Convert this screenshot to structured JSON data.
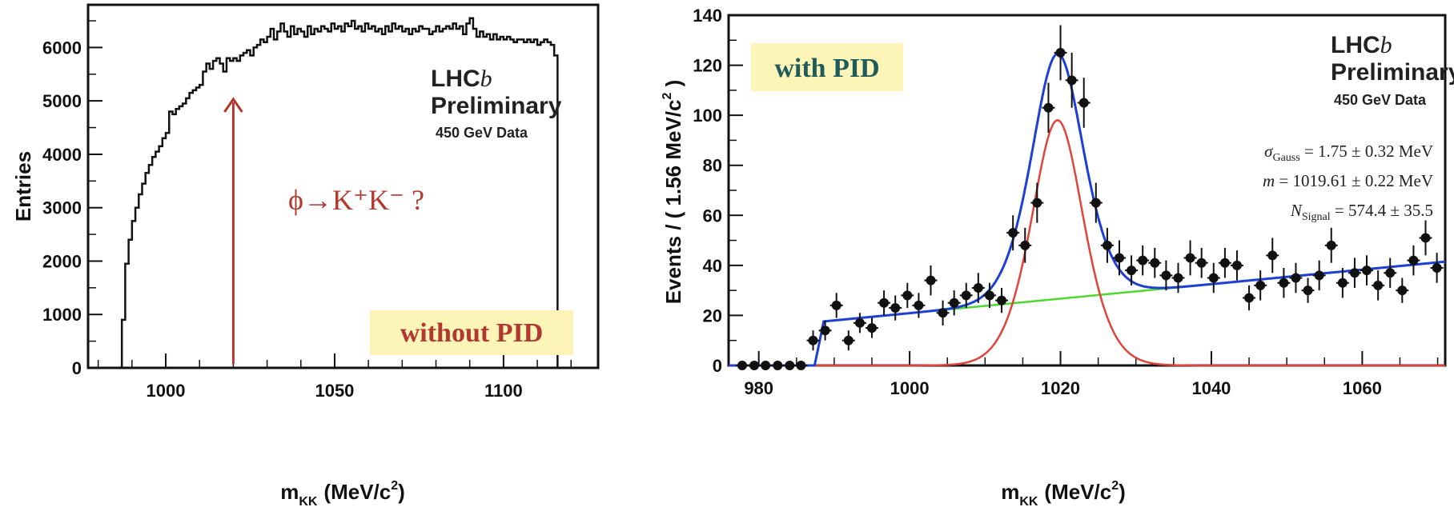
{
  "chart_data": [
    {
      "type": "histogram",
      "xlabel_main": "m",
      "xlabel_sub": "KK",
      "xlabel_unit": "(MeV/c",
      "xlabel_pow": "2",
      "xlabel_close": ")",
      "ylabel": "Entries",
      "xlim": [
        977,
        1128
      ],
      "ylim": [
        0,
        6800
      ],
      "x_ticks": [
        1000,
        1050,
        1100
      ],
      "y_ticks": [
        0,
        1000,
        2000,
        3000,
        4000,
        5000,
        6000
      ],
      "lhcb_line1": "LHC",
      "lhcb_italic": "b",
      "lhcb_line2": "Preliminary",
      "lhcb_line3": "450 GeV Data",
      "annotation": "ϕ→K⁺K⁻ ?",
      "arrow_x": 1020,
      "badge": "without PID",
      "badge_color": "#fdf5b8",
      "annotation_color": "#b2382f",
      "bin_edges_start": 987,
      "bin_width": 1,
      "counts": [
        900,
        1950,
        2400,
        2750,
        3000,
        3250,
        3450,
        3650,
        3800,
        3950,
        4050,
        4150,
        4300,
        4400,
        4800,
        4750,
        4850,
        4900,
        4950,
        5050,
        5150,
        5200,
        5250,
        5300,
        5550,
        5700,
        5600,
        5750,
        5800,
        5700,
        5550,
        5800,
        5750,
        5800,
        5750,
        5850,
        5900,
        5950,
        5850,
        6000,
        6050,
        6150,
        6100,
        6200,
        6350,
        6150,
        6300,
        6450,
        6300,
        6200,
        6400,
        6250,
        6350,
        6300,
        6200,
        6400,
        6250,
        6350,
        6300,
        6400,
        6350,
        6300,
        6450,
        6350,
        6400,
        6300,
        6450,
        6400,
        6500,
        6350,
        6400,
        6300,
        6450,
        6350,
        6400,
        6300,
        6350,
        6250,
        6400,
        6300,
        6450,
        6350,
        6400,
        6300,
        6350,
        6250,
        6350,
        6300,
        6400,
        6350,
        6350,
        6250,
        6300,
        6400,
        6300,
        6350,
        6400,
        6350,
        6450,
        6350,
        6400,
        6250,
        6450,
        6550,
        6350,
        6200,
        6300,
        6200,
        6250,
        6150,
        6250,
        6150,
        6200,
        6150,
        6200,
        6150,
        6100,
        6150,
        6150,
        6100,
        6150,
        6100,
        6150,
        6050,
        6100,
        6150,
        6100,
        6050,
        5850
      ]
    },
    {
      "type": "scatter",
      "xlabel_main": "m",
      "xlabel_sub": "KK",
      "xlabel_unit": "(MeV/c",
      "xlabel_pow": "2",
      "xlabel_close": ")",
      "ylabel_main": "Events / ( 1.56 MeV/c",
      "ylabel_pow": "2",
      "ylabel_close": " )",
      "xlim": [
        976,
        1071
      ],
      "ylim": [
        0,
        140
      ],
      "x_ticks": [
        980,
        1000,
        1020,
        1040,
        1060
      ],
      "y_ticks": [
        0,
        20,
        40,
        60,
        80,
        100,
        120,
        140
      ],
      "lhcb_line1": "LHC",
      "lhcb_italic": "b",
      "lhcb_line2": "Preliminary",
      "lhcb_line3": "450 GeV Data",
      "badge": "with PID",
      "badge_color": "#fdf5b8",
      "badge_text_color": "#1f5b5b",
      "fit_params": [
        {
          "sym": "σ",
          "sub": "Gauss",
          "text": " = 1.75 ± 0.32 MeV"
        },
        {
          "sym": "m",
          "sub": "",
          "text": " = 1019.61 ± 0.22 MeV"
        },
        {
          "sym": "N",
          "sub": "Signal",
          "text": " = 574.4 ± 35.5"
        }
      ],
      "fit_mean": 1019.61,
      "series": [
        {
          "name": "total fit",
          "color": "#1d3fd4"
        },
        {
          "name": "signal",
          "color": "#e0433a"
        },
        {
          "name": "background",
          "color": "#4ed830"
        }
      ],
      "points": [
        [
          977.8,
          0,
          1
        ],
        [
          979.4,
          0,
          1
        ],
        [
          980.9,
          0,
          1
        ],
        [
          982.5,
          0,
          1
        ],
        [
          984.1,
          0,
          1
        ],
        [
          985.6,
          0,
          1
        ],
        [
          987.2,
          10,
          4
        ],
        [
          988.8,
          14,
          4
        ],
        [
          990.3,
          24,
          5
        ],
        [
          991.9,
          10,
          4
        ],
        [
          993.4,
          17,
          4
        ],
        [
          995.0,
          15,
          4
        ],
        [
          996.6,
          25,
          5
        ],
        [
          998.1,
          23,
          5
        ],
        [
          999.7,
          28,
          5
        ],
        [
          1001.2,
          24,
          5
        ],
        [
          1002.8,
          34,
          6
        ],
        [
          1004.4,
          21,
          5
        ],
        [
          1005.9,
          25,
          5
        ],
        [
          1007.5,
          28,
          5
        ],
        [
          1009.1,
          31,
          6
        ],
        [
          1010.6,
          28,
          5
        ],
        [
          1012.2,
          26,
          5
        ],
        [
          1013.7,
          53,
          7
        ],
        [
          1015.3,
          48,
          7
        ],
        [
          1016.9,
          65,
          8
        ],
        [
          1018.4,
          103,
          10
        ],
        [
          1020.0,
          125,
          11
        ],
        [
          1021.5,
          114,
          11
        ],
        [
          1023.1,
          105,
          10
        ],
        [
          1024.7,
          65,
          8
        ],
        [
          1026.2,
          48,
          7
        ],
        [
          1027.8,
          43,
          7
        ],
        [
          1029.4,
          38,
          6
        ],
        [
          1030.9,
          42,
          6
        ],
        [
          1032.5,
          41,
          6
        ],
        [
          1034.0,
          36,
          6
        ],
        [
          1035.6,
          35,
          6
        ],
        [
          1037.2,
          43,
          7
        ],
        [
          1038.7,
          41,
          6
        ],
        [
          1040.3,
          35,
          6
        ],
        [
          1041.8,
          41,
          6
        ],
        [
          1043.4,
          40,
          6
        ],
        [
          1045.0,
          27,
          5
        ],
        [
          1046.5,
          32,
          6
        ],
        [
          1048.1,
          44,
          7
        ],
        [
          1049.6,
          33,
          6
        ],
        [
          1051.2,
          35,
          6
        ],
        [
          1052.8,
          30,
          5
        ],
        [
          1054.3,
          36,
          6
        ],
        [
          1055.9,
          48,
          7
        ],
        [
          1057.4,
          33,
          6
        ],
        [
          1059.0,
          37,
          6
        ],
        [
          1060.6,
          38,
          6
        ],
        [
          1062.1,
          32,
          6
        ],
        [
          1063.7,
          37,
          6
        ],
        [
          1065.3,
          30,
          5
        ],
        [
          1066.8,
          42,
          6
        ],
        [
          1068.4,
          51,
          7
        ],
        [
          1069.9,
          39,
          6
        ]
      ]
    }
  ]
}
